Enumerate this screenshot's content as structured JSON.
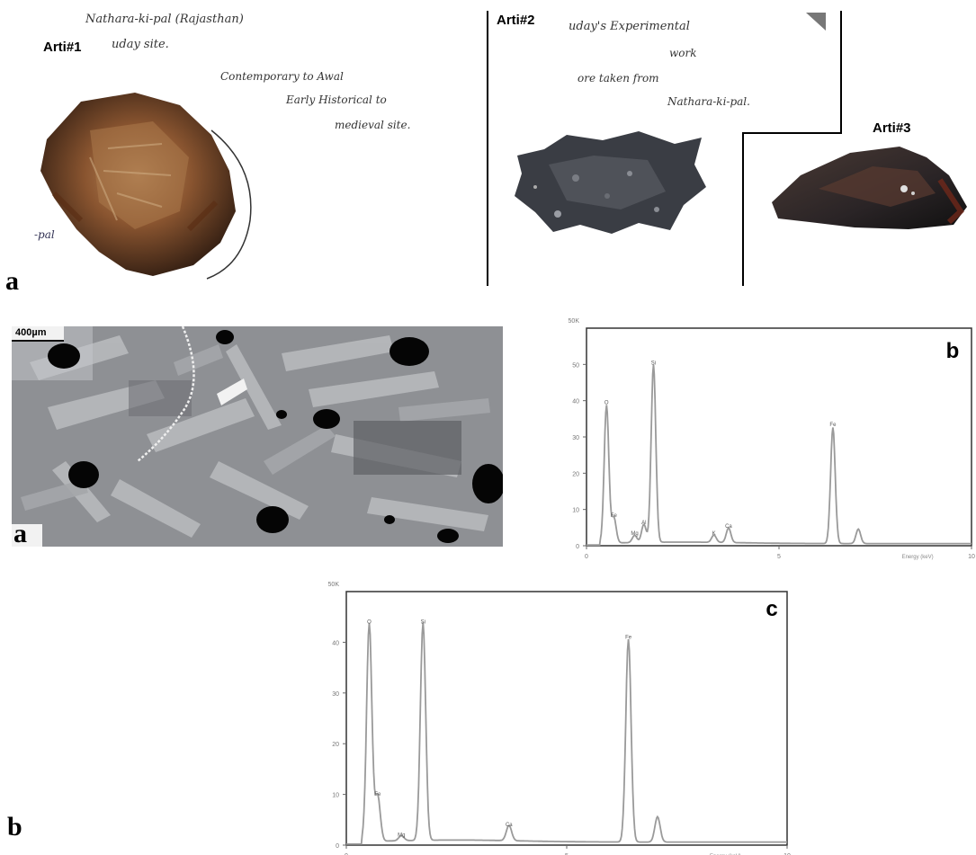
{
  "top_panel": {
    "label": "a",
    "artifacts": [
      {
        "name": "Arti#1",
        "notes": [
          "Nathara-ki-pal (Rajasthan)",
          "uday site.",
          "Contemporary to Awal",
          "Early Historical to",
          "medieval site."
        ],
        "tag": "-pal"
      },
      {
        "name": "Arti#2",
        "notes": [
          "uday's Experimental",
          "work",
          "ore taken from",
          "Nathara-ki-pal."
        ]
      },
      {
        "name": "Arti#3",
        "notes": []
      }
    ]
  },
  "micrograph": {
    "label": "a",
    "scale_bar": "400µm"
  },
  "bottom_label": "b",
  "colors": {
    "spectrum_line": "#9a9a9a",
    "frame": "#333333",
    "ore_brown": "#7a4420",
    "slag_grey": "#3a3d44"
  },
  "chart_data": [
    {
      "type": "line",
      "panel_label": "b",
      "title": "",
      "xlabel": "Energy (keV)",
      "ylabel": "",
      "y_top_label": "50K",
      "xlim": [
        0,
        10
      ],
      "ylim": [
        0,
        60
      ],
      "xticks": [
        "0",
        "5",
        "10"
      ],
      "yticks": [
        "0",
        "10",
        "20",
        "30",
        "40",
        "50"
      ],
      "peaks": [
        {
          "label": "O",
          "x": 0.52,
          "y": 38
        },
        {
          "label": "Fe",
          "x": 0.71,
          "y": 7
        },
        {
          "label": "Mg",
          "x": 1.25,
          "y": 2
        },
        {
          "label": "Al",
          "x": 1.49,
          "y": 5
        },
        {
          "label": "Si",
          "x": 1.74,
          "y": 49
        },
        {
          "label": "K",
          "x": 3.31,
          "y": 2
        },
        {
          "label": "Ca",
          "x": 3.69,
          "y": 4
        },
        {
          "label": "Fe",
          "x": 6.4,
          "y": 32
        },
        {
          "label": "",
          "x": 7.06,
          "y": 4
        }
      ]
    },
    {
      "type": "line",
      "panel_label": "c",
      "title": "",
      "xlabel": "Energy (keV)",
      "ylabel": "",
      "y_top_label": "50K",
      "xlim": [
        0,
        10
      ],
      "ylim": [
        0,
        50
      ],
      "xticks": [
        "0",
        "5",
        "10"
      ],
      "yticks": [
        "0",
        "10",
        "20",
        "30",
        "40"
      ],
      "peaks": [
        {
          "label": "O",
          "x": 0.52,
          "y": 43
        },
        {
          "label": "Fe",
          "x": 0.71,
          "y": 9
        },
        {
          "label": "Mg",
          "x": 1.25,
          "y": 1
        },
        {
          "label": "Si",
          "x": 1.74,
          "y": 43
        },
        {
          "label": "Ca",
          "x": 3.69,
          "y": 3
        },
        {
          "label": "Fe",
          "x": 6.4,
          "y": 40
        },
        {
          "label": "",
          "x": 7.06,
          "y": 5
        }
      ]
    }
  ]
}
